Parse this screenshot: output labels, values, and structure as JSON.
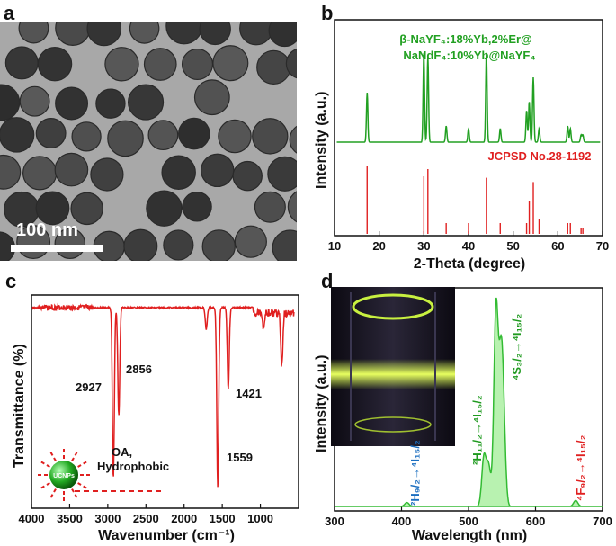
{
  "panels": {
    "a": {
      "letter": "a",
      "scale_bar_label": "100 nm"
    },
    "b": {
      "letter": "b",
      "sample_label_line1": "β-NaYF₄:18%Yb,2%Er@",
      "sample_label_line2": "NaNdF₄:10%Yb@NaYF₄",
      "reference_label": "JCPSD No.28-1192"
    },
    "c": {
      "letter": "c",
      "peak_labels": [
        "2927",
        "2856",
        "1421",
        "1559"
      ],
      "ligand_label_line1": "OA,",
      "ligand_label_line2": "Hydrophobic",
      "particle_label": "UCNPs"
    },
    "d": {
      "letter": "d",
      "transitions": [
        "²H₉/₂→⁴I₁₅/₂",
        "²H₁₁/₂→⁴I₁₅/₂",
        "⁴S₃/₂→⁴I₁₅/₂",
        "⁴F₉/₂→⁴I₁₅/₂"
      ]
    }
  },
  "chart_data": [
    {
      "panel": "b",
      "type": "line",
      "xlabel": "2-Theta (degree)",
      "ylabel": "Intensity (a.u.)",
      "xlim": [
        10,
        70
      ],
      "xticks": [
        "10",
        "20",
        "30",
        "40",
        "50",
        "60",
        "70"
      ],
      "series": [
        {
          "color": "#22a022",
          "peaks": [
            [
              17.3,
              0.55
            ],
            [
              30.0,
              1.0
            ],
            [
              30.9,
              0.95
            ],
            [
              35.0,
              0.18
            ],
            [
              40.0,
              0.15
            ],
            [
              44.0,
              1.0
            ],
            [
              47.1,
              0.15
            ],
            [
              53.0,
              0.35
            ],
            [
              53.6,
              0.45
            ],
            [
              54.5,
              0.72
            ],
            [
              55.8,
              0.15
            ],
            [
              62.2,
              0.18
            ],
            [
              62.8,
              0.15
            ],
            [
              65.2,
              0.08
            ],
            [
              65.6,
              0.08
            ]
          ]
        },
        {
          "name": "JCPSD No.28-1192",
          "color": "#e02020",
          "sticks": [
            [
              17.3,
              0.95
            ],
            [
              30.0,
              0.8
            ],
            [
              30.9,
              0.9
            ],
            [
              35.0,
              0.15
            ],
            [
              40.0,
              0.15
            ],
            [
              44.0,
              0.78
            ],
            [
              47.1,
              0.15
            ],
            [
              53.0,
              0.15
            ],
            [
              53.6,
              0.45
            ],
            [
              54.5,
              0.72
            ],
            [
              55.8,
              0.2
            ],
            [
              62.2,
              0.15
            ],
            [
              62.8,
              0.15
            ],
            [
              65.2,
              0.08
            ],
            [
              65.6,
              0.08
            ]
          ]
        }
      ]
    },
    {
      "panel": "c",
      "type": "line",
      "xlabel": "Wavenumber (cm⁻¹)",
      "ylabel": "Transmittance (%)",
      "xlim": [
        4000,
        500
      ],
      "xticks": [
        "4000",
        "3500",
        "3000",
        "2500",
        "2000",
        "1500",
        "1000"
      ],
      "series": [
        {
          "color": "#e02020",
          "dips": [
            [
              2927,
              0.95
            ],
            [
              2856,
              0.6
            ],
            [
              1559,
              1.0
            ],
            [
              1421,
              0.45
            ],
            [
              1710,
              0.12
            ],
            [
              960,
              0.08
            ],
            [
              720,
              0.3
            ]
          ]
        }
      ]
    },
    {
      "panel": "d",
      "type": "area",
      "xlabel": "Wavelength (nm)",
      "ylabel": "Intensity (a.u.)",
      "xlim": [
        300,
        700
      ],
      "xticks": [
        "300",
        "400",
        "500",
        "600",
        "700"
      ],
      "series": [
        {
          "color": "#44cc44",
          "peaks": [
            [
              408,
              0.02
            ],
            [
              523,
              0.25
            ],
            [
              530,
              0.2
            ],
            [
              541,
              1.0
            ],
            [
              548,
              0.6
            ],
            [
              552,
              0.4
            ],
            [
              660,
              0.03
            ]
          ]
        }
      ]
    }
  ]
}
